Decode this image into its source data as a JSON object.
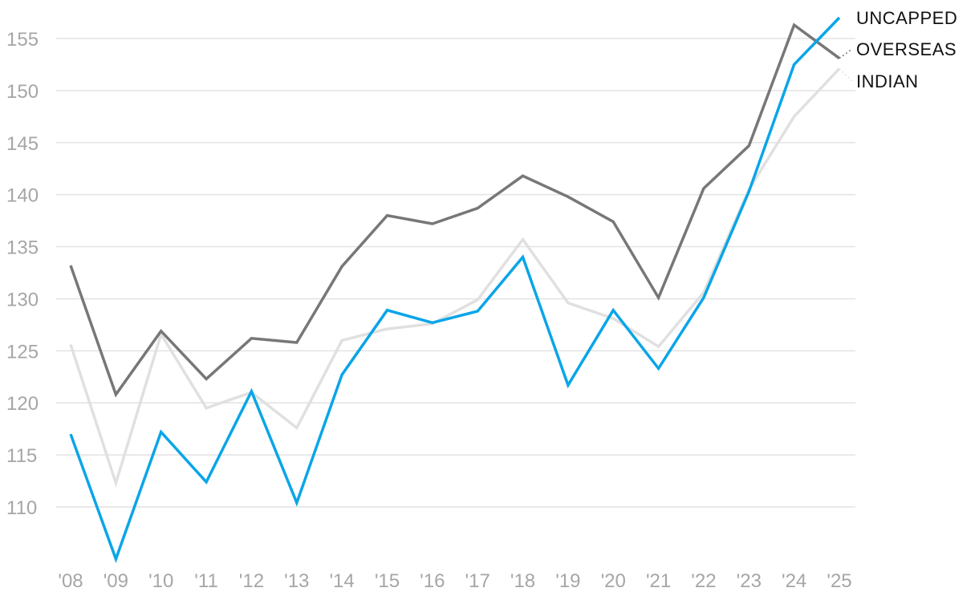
{
  "chart_data": {
    "type": "line",
    "categories": [
      "'08",
      "'09",
      "'10",
      "'11",
      "'12",
      "'13",
      "'14",
      "'15",
      "'16",
      "'17",
      "'18",
      "'19",
      "'20",
      "'21",
      "'22",
      "'23",
      "'24",
      "'25"
    ],
    "yticks": [
      110,
      115,
      120,
      125,
      130,
      135,
      140,
      145,
      150,
      155
    ],
    "ylim": [
      104.5,
      157.5
    ],
    "grid": true,
    "title": "",
    "xlabel": "",
    "ylabel": "",
    "series": [
      {
        "name": "INDIAN",
        "color": "#e0e0e0",
        "values": [
          125.6,
          112.3,
          126.6,
          119.5,
          121.0,
          117.6,
          126.0,
          127.1,
          127.6,
          129.9,
          135.7,
          129.6,
          128.1,
          125.4,
          130.6,
          140.5,
          147.5,
          152.1
        ]
      },
      {
        "name": "OVERSEAS",
        "color": "#777777",
        "values": [
          133.2,
          120.8,
          126.9,
          122.3,
          126.2,
          125.8,
          133.1,
          138.0,
          137.2,
          138.7,
          141.8,
          139.8,
          137.4,
          130.1,
          140.6,
          144.7,
          156.3,
          153.1
        ]
      },
      {
        "name": "UNCAPPED",
        "color": "#0aa5e8",
        "values": [
          117.0,
          105.0,
          117.2,
          112.4,
          121.1,
          110.4,
          122.7,
          128.9,
          127.7,
          128.8,
          134.0,
          121.7,
          128.9,
          123.3,
          130.1,
          140.3,
          152.5,
          157.0
        ]
      }
    ]
  }
}
